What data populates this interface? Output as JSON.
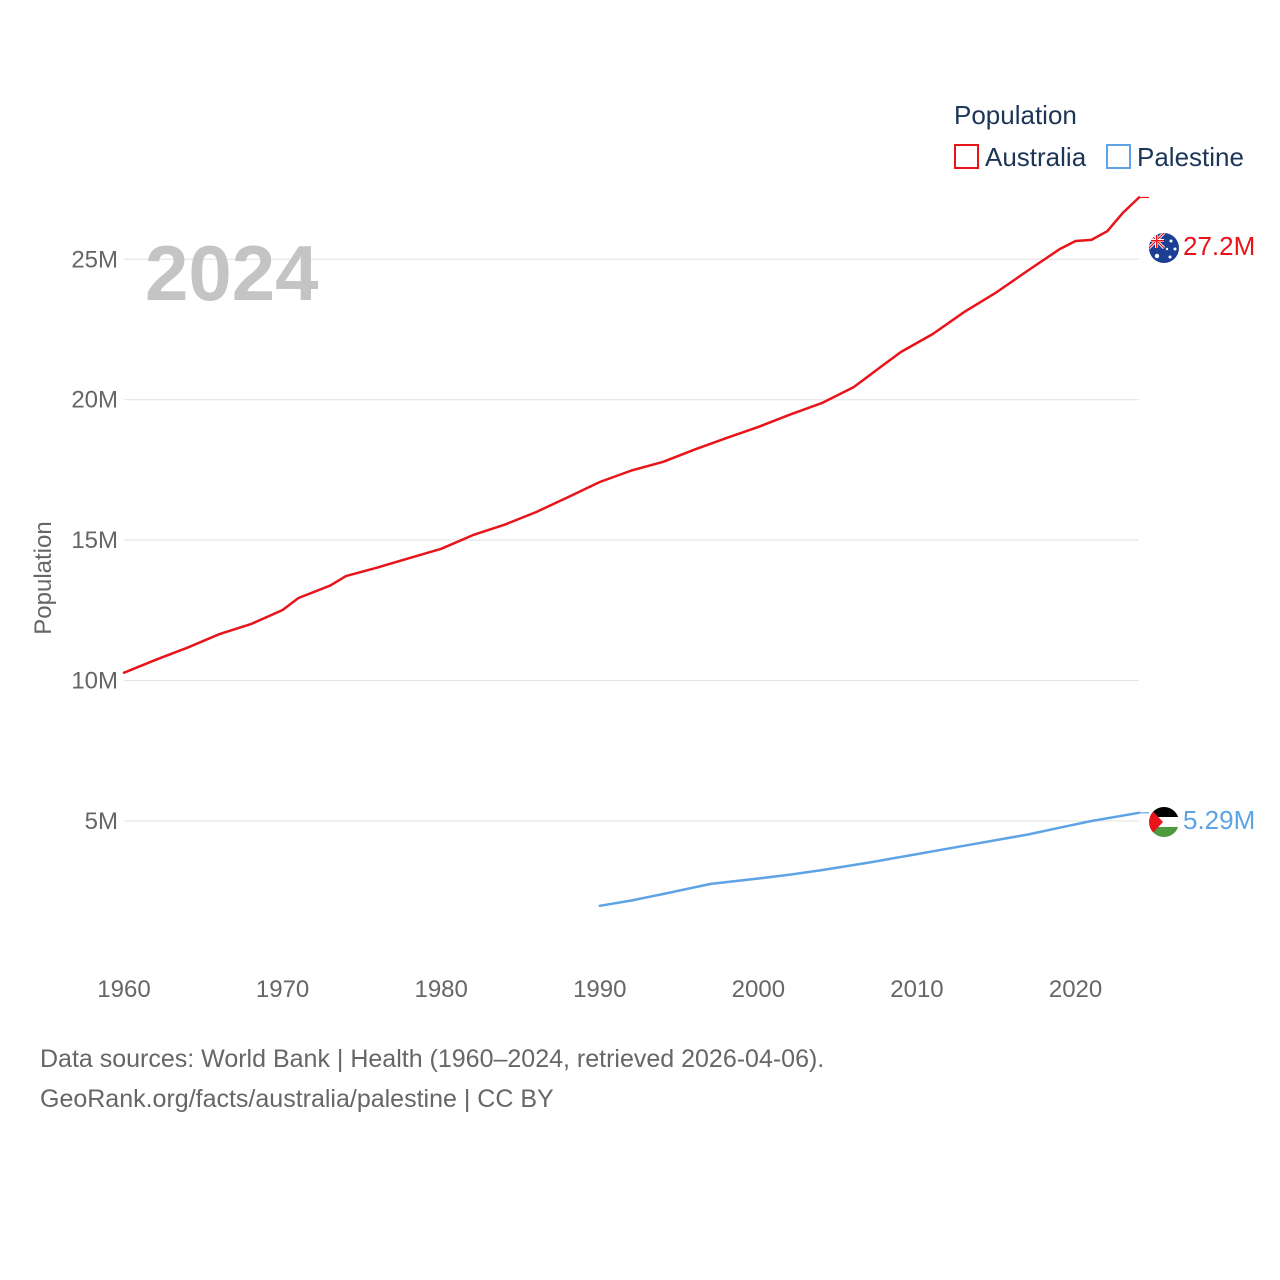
{
  "chart_data": {
    "type": "line",
    "year_label": "2024",
    "ylabel": "Population",
    "legend": {
      "title": "Population",
      "placement": "top-right"
    },
    "xlim": [
      1960,
      2024
    ],
    "ylim": [
      0,
      28000000
    ],
    "x_ticks": [
      {
        "value": 1960,
        "label": "1960"
      },
      {
        "value": 1970,
        "label": "1970"
      },
      {
        "value": 1980,
        "label": "1980"
      },
      {
        "value": 1990,
        "label": "1990"
      },
      {
        "value": 2000,
        "label": "2000"
      },
      {
        "value": 2010,
        "label": "2010"
      },
      {
        "value": 2020,
        "label": "2020"
      }
    ],
    "y_ticks": [
      {
        "value": 5000000,
        "label": "5M"
      },
      {
        "value": 10000000,
        "label": "10M"
      },
      {
        "value": 15000000,
        "label": "15M"
      },
      {
        "value": 20000000,
        "label": "20M"
      },
      {
        "value": 25000000,
        "label": "25M"
      }
    ],
    "series": [
      {
        "name": "Australia",
        "color": "#e8141a",
        "end_label": "27.2M",
        "flag_icon": "australia-flag-icon",
        "x": [
          1960,
          1962,
          1964,
          1966,
          1968,
          1970,
          1971,
          1973,
          1974,
          1976,
          1978,
          1980,
          1982,
          1984,
          1986,
          1988,
          1990,
          1992,
          1994,
          1996,
          1998,
          2000,
          2002,
          2004,
          2006,
          2008,
          2009,
          2011,
          2013,
          2015,
          2017,
          2019,
          2020,
          2021,
          2022,
          2023,
          2024
        ],
        "values": [
          10280000,
          10740000,
          11170000,
          11650000,
          12010000,
          12510000,
          12940000,
          13380000,
          13720000,
          14030000,
          14360000,
          14690000,
          15180000,
          15550000,
          16000000,
          16530000,
          17070000,
          17480000,
          17790000,
          18230000,
          18640000,
          19030000,
          19470000,
          19880000,
          20440000,
          21290000,
          21700000,
          22340000,
          23130000,
          23820000,
          24600000,
          25360000,
          25650000,
          25690000,
          26000000,
          26660000,
          27200000
        ]
      },
      {
        "name": "Palestine",
        "color": "#5da3e6",
        "end_label": "5.29M",
        "flag_icon": "palestine-flag-icon",
        "x": [
          1990,
          1992,
          1994,
          1997,
          2000,
          2002,
          2004,
          2007,
          2010,
          2013,
          2017,
          2019,
          2021,
          2024
        ],
        "values": [
          1980000,
          2170000,
          2400000,
          2760000,
          2950000,
          3090000,
          3250000,
          3520000,
          3820000,
          4120000,
          4520000,
          4760000,
          5000000,
          5290000
        ]
      }
    ]
  },
  "footer": {
    "line1": "Data sources: World Bank | Health (1960–2024, retrieved 2026-04-06).",
    "line2": "GeoRank.org/facts/australia/palestine | CC BY"
  }
}
